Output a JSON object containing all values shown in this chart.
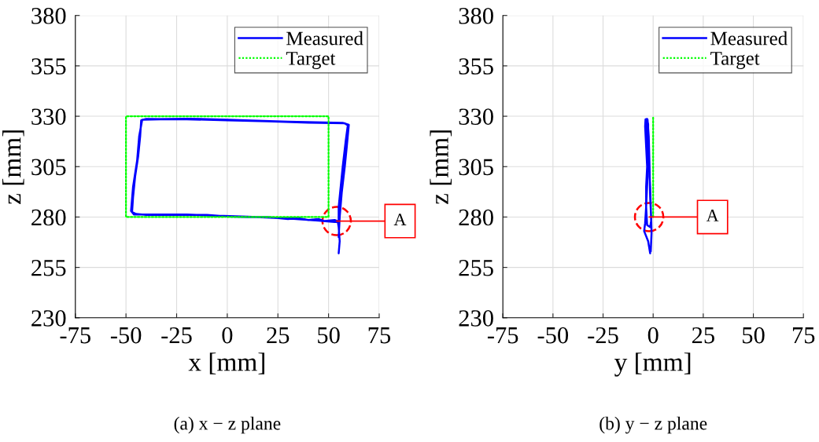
{
  "chart_data": [
    {
      "type": "line",
      "xlabel": "x [mm]",
      "ylabel": "z [mm]",
      "xlim": [
        -75,
        75
      ],
      "ylim": [
        230,
        380
      ],
      "xticks": [
        -75,
        -50,
        -25,
        0,
        25,
        50,
        75
      ],
      "yticks": [
        230,
        255,
        280,
        305,
        330,
        355,
        380
      ],
      "grid": true,
      "legend": "top right",
      "series": [
        {
          "name": "Measured",
          "color": "#0000ff",
          "line_style": "solid",
          "x": [
            55,
            55.5,
            55,
            54.5,
            53,
            48,
            45,
            40,
            35,
            30,
            20,
            10,
            0,
            -10,
            -25,
            -40,
            -45,
            -47,
            -46.5,
            -45.5,
            -44,
            -43,
            -42.5,
            -40,
            -20,
            0,
            20,
            40,
            58,
            59.5,
            58.5,
            57,
            56,
            55,
            55,
            53,
            45,
            30,
            10,
            -20,
            -46,
            -47.5,
            -46.5,
            -44.5,
            -43.5,
            -42,
            -20,
            0,
            30,
            57,
            60,
            59,
            58,
            56.5,
            55.5,
            55
          ],
          "values": [
            262,
            268,
            275,
            278,
            278.5,
            278,
            279,
            278.5,
            279.5,
            279,
            280,
            280,
            280.3,
            281,
            281,
            281,
            281.5,
            282.5,
            290,
            300,
            310,
            320,
            328,
            328.7,
            328.5,
            328,
            327.5,
            326.8,
            326.5,
            325.5,
            318,
            305,
            295,
            285,
            278,
            277.5,
            278.2,
            279.3,
            280.2,
            281.2,
            281.2,
            283,
            295,
            308,
            320,
            328.3,
            328.8,
            328.3,
            327.3,
            326.7,
            325.8,
            315,
            305,
            292,
            280,
            270
          ]
        },
        {
          "name": "Target",
          "color": "#00ff00",
          "line_style": "dotted",
          "x": [
            0,
            50,
            50,
            -50,
            -50,
            -1
          ],
          "values": [
            280,
            280,
            330,
            330,
            280,
            280
          ]
        }
      ],
      "annotations": [
        {
          "text": "A",
          "x": 54,
          "y": 278
        },
        "(a) x − z plane"
      ]
    },
    {
      "type": "line",
      "xlabel": "y [mm]",
      "ylabel": "z [mm]",
      "xlim": [
        -75,
        75
      ],
      "ylim": [
        230,
        380
      ],
      "xticks": [
        -75,
        -50,
        -25,
        0,
        25,
        50,
        75
      ],
      "yticks": [
        230,
        255,
        280,
        305,
        330,
        355,
        380
      ],
      "grid": true,
      "legend": "top right",
      "series": [
        {
          "name": "Measured",
          "color": "#0000ff",
          "line_style": "solid",
          "x": [
            -1.5,
            -2.5,
            -4.5,
            -4,
            -3.5,
            -3.5,
            -3,
            -3.5,
            -4,
            -3.8,
            -3,
            -2.5,
            -2.5,
            -2,
            -1.5,
            -1.2,
            -1,
            -1.5,
            -3,
            -3.5,
            -2.8,
            -3.2,
            -3.5,
            -2.8,
            -2.2,
            -1.8,
            -1.5,
            -1,
            -0.8,
            -1.2
          ],
          "values": [
            262,
            268,
            273,
            277,
            285,
            295,
            305,
            315,
            325,
            328.5,
            328.7,
            326,
            315,
            305,
            295,
            285,
            278,
            275,
            276,
            285,
            300,
            315,
            327,
            328.3,
            320,
            305,
            290,
            280,
            272,
            263
          ]
        },
        {
          "name": "Target",
          "color": "#00ff00",
          "line_style": "dotted",
          "x": [
            0,
            0
          ],
          "values": [
            280,
            330
          ]
        }
      ],
      "annotations": [
        {
          "text": "A",
          "x": -2,
          "y": 280
        },
        "(b) y − z plane"
      ]
    }
  ]
}
